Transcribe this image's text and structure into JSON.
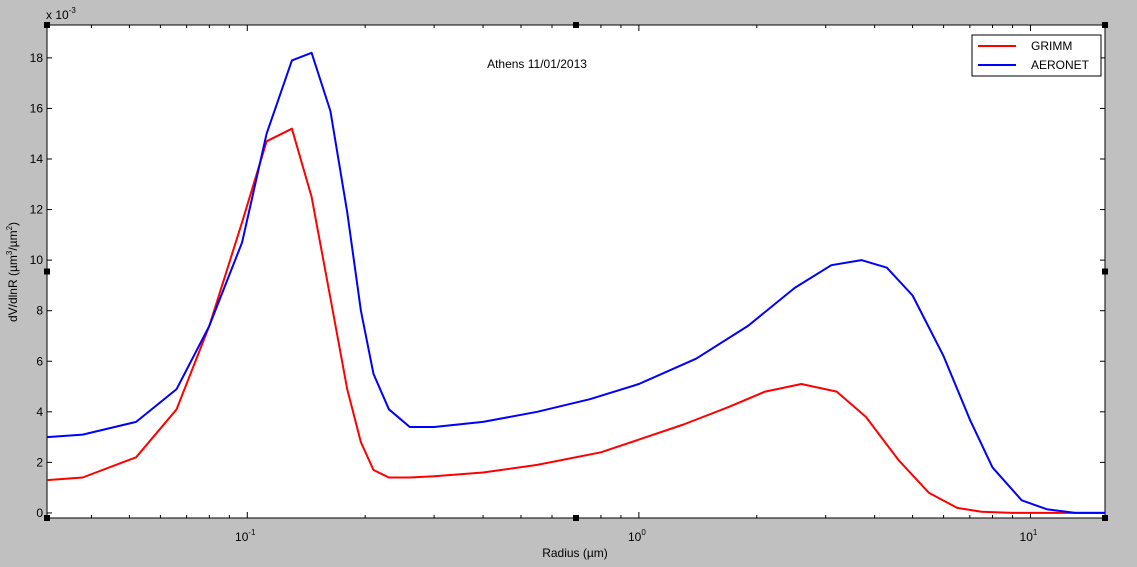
{
  "window": {
    "background_color": "#c0c0c0",
    "axes_color": "#ffffff"
  },
  "chart_data": {
    "type": "line",
    "title": "Athens 11/01/2013",
    "xlabel": "Radius (µm)",
    "ylabel": {
      "prefix": "dV/dlnR (µm",
      "sup1": "3",
      "middle": "/µm",
      "sup2": "2",
      "suffix": ")"
    },
    "x_scale": "log",
    "xlim": [
      0.0308,
      15.5
    ],
    "ylim": [
      -0.0002,
      0.0193
    ],
    "y_exponent_label": {
      "base": "x 10",
      "exp": "-3"
    },
    "x_ticks": [
      {
        "value": 0.1,
        "base": "10",
        "exp": "-1"
      },
      {
        "value": 1,
        "base": "10",
        "exp": "0"
      },
      {
        "value": 10,
        "base": "10",
        "exp": "1"
      }
    ],
    "y_ticks": [
      {
        "value": 0,
        "label": "0"
      },
      {
        "value": 0.002,
        "label": "2"
      },
      {
        "value": 0.004,
        "label": "4"
      },
      {
        "value": 0.006,
        "label": "6"
      },
      {
        "value": 0.008,
        "label": "8"
      },
      {
        "value": 0.01,
        "label": "10"
      },
      {
        "value": 0.012,
        "label": "12"
      },
      {
        "value": 0.014,
        "label": "14"
      },
      {
        "value": 0.016,
        "label": "16"
      },
      {
        "value": 0.018,
        "label": "18"
      }
    ],
    "grid": false,
    "legend_position": "top-right",
    "series": [
      {
        "name": "GRIMM",
        "color": "#ff0000",
        "x": [
          0.0308,
          0.038,
          0.052,
          0.066,
          0.08,
          0.097,
          0.112,
          0.13,
          0.146,
          0.163,
          0.18,
          0.195,
          0.21,
          0.23,
          0.26,
          0.3,
          0.4,
          0.55,
          0.8,
          1.0,
          1.3,
          1.7,
          2.1,
          2.6,
          3.2,
          3.8,
          4.6,
          5.5,
          6.5,
          7.5,
          9.0,
          11.0,
          15.5
        ],
        "y": [
          0.0013,
          0.0014,
          0.0022,
          0.0041,
          0.0074,
          0.0115,
          0.0147,
          0.0152,
          0.0125,
          0.0085,
          0.0049,
          0.0028,
          0.0017,
          0.0014,
          0.0014,
          0.00145,
          0.0016,
          0.0019,
          0.0024,
          0.0029,
          0.0035,
          0.0042,
          0.0048,
          0.0051,
          0.0048,
          0.0038,
          0.0021,
          0.0008,
          0.0002,
          5e-05,
          0.0,
          0.0,
          0.0
        ]
      },
      {
        "name": "AERONET",
        "color": "#0000ff",
        "x": [
          0.0308,
          0.038,
          0.052,
          0.066,
          0.08,
          0.097,
          0.112,
          0.13,
          0.146,
          0.163,
          0.18,
          0.195,
          0.21,
          0.23,
          0.26,
          0.3,
          0.4,
          0.55,
          0.75,
          1.0,
          1.4,
          1.9,
          2.5,
          3.1,
          3.7,
          4.3,
          5.0,
          6.0,
          7.0,
          8.0,
          9.5,
          11.0,
          13.0,
          15.5
        ],
        "y": [
          0.003,
          0.0031,
          0.0036,
          0.0049,
          0.0074,
          0.0107,
          0.015,
          0.0179,
          0.0182,
          0.0159,
          0.0119,
          0.008,
          0.0055,
          0.0041,
          0.0034,
          0.0034,
          0.0036,
          0.004,
          0.0045,
          0.0051,
          0.0061,
          0.0074,
          0.0089,
          0.0098,
          0.01,
          0.0097,
          0.0086,
          0.0062,
          0.0037,
          0.0018,
          0.0005,
          0.00015,
          0.0,
          0.0
        ]
      }
    ]
  }
}
